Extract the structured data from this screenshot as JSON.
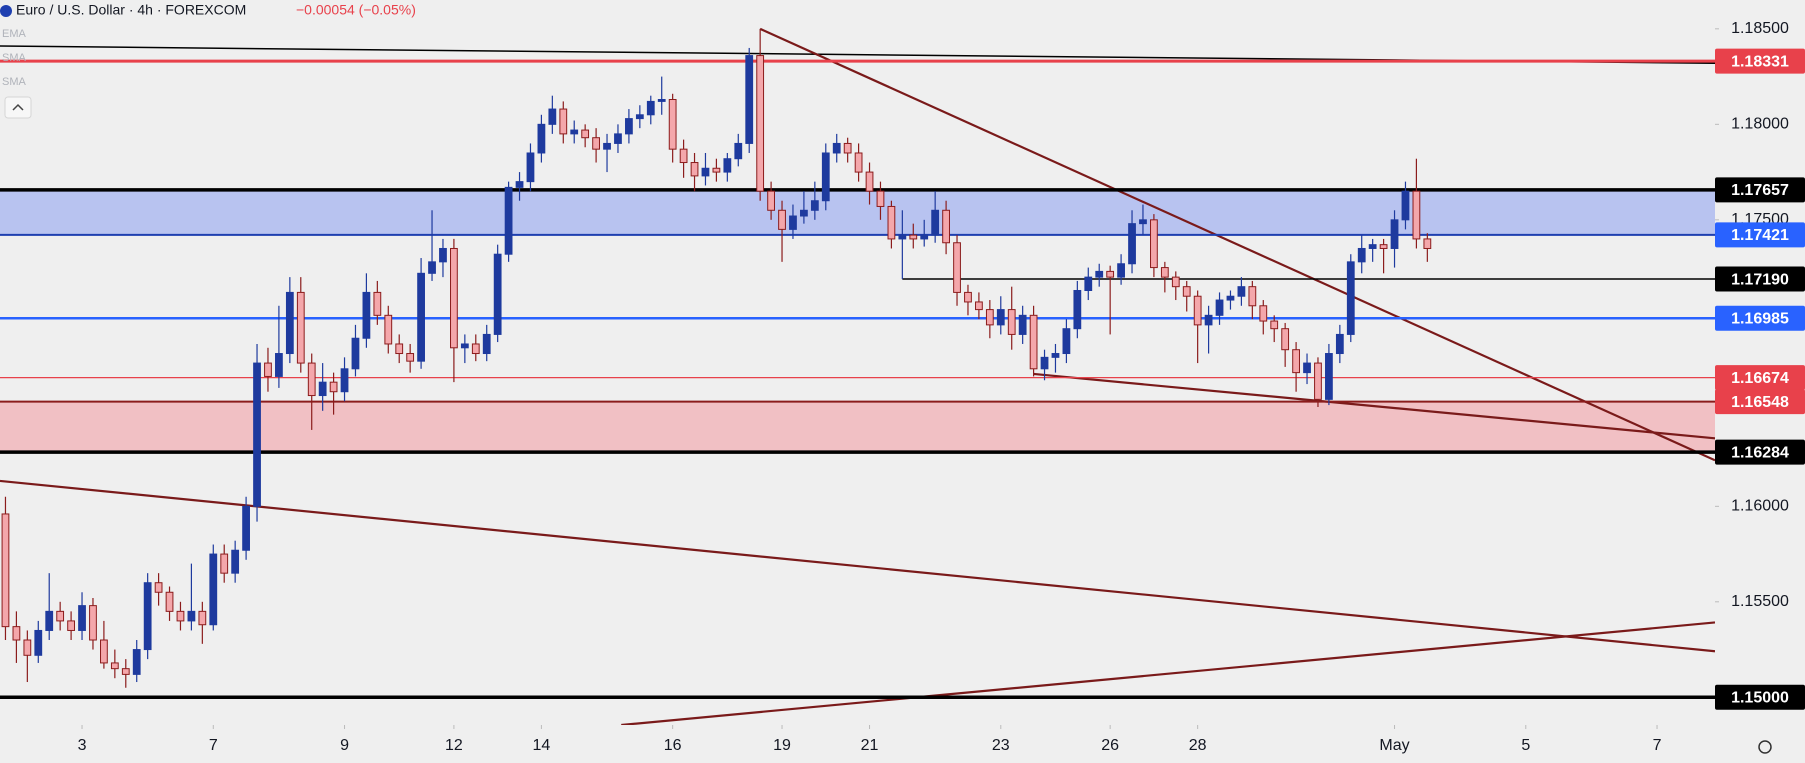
{
  "header": {
    "symbol": "Euro / U.S. Dollar · 4h · FOREXCOM",
    "change": "−0.00054 (−0.05%)",
    "indicators": [
      "EMA",
      "SMA",
      "SMA"
    ]
  },
  "chart_data": {
    "type": "candlestick",
    "up_color": "#1e3a9e",
    "down_color": "#f4a7ab",
    "down_edge": "#8b1c1c",
    "xlim": [
      -0.5,
      156.3
    ],
    "ylim": [
      1.14855,
      1.18651
    ],
    "xticks": [
      {
        "value": 7,
        "label": "3"
      },
      {
        "value": 19,
        "label": "7"
      },
      {
        "value": 31,
        "label": "9"
      },
      {
        "value": 41,
        "label": "12"
      },
      {
        "value": 49,
        "label": "14"
      },
      {
        "value": 61,
        "label": "16"
      },
      {
        "value": 71,
        "label": "19"
      },
      {
        "value": 79,
        "label": "21"
      },
      {
        "value": 91,
        "label": "23"
      },
      {
        "value": 101,
        "label": "26"
      },
      {
        "value": 109,
        "label": "28"
      },
      {
        "value": 127,
        "label": "May"
      },
      {
        "value": 139,
        "label": "5"
      },
      {
        "value": 151,
        "label": "7"
      }
    ],
    "yticks": [
      {
        "value": 1.185,
        "label": "1.18500"
      },
      {
        "value": 1.18,
        "label": "1.18000"
      },
      {
        "value": 1.175,
        "label": "1.17500"
      },
      {
        "value": 1.16,
        "label": "1.16000"
      },
      {
        "value": 1.155,
        "label": "1.15500"
      }
    ],
    "zones": [
      {
        "from": 1.17421,
        "to": 1.17657,
        "color": "#b8c3f0"
      },
      {
        "from": 1.16284,
        "to": 1.16548,
        "color": "#f1c0c4"
      }
    ],
    "levels": [
      {
        "value": 1.18331,
        "label": "1.18331",
        "color": "#e8414b"
      },
      {
        "value": 1.17657,
        "label": "1.17657",
        "color": "#000000"
      },
      {
        "value": 1.17421,
        "label": "1.17421",
        "color": "#1e3fb0",
        "box": "#2962ff"
      },
      {
        "value": 1.1719,
        "label": "1.17190",
        "color": "#000000",
        "start": 82
      },
      {
        "value": 1.16985,
        "label": "1.16985",
        "color": "#2962ff"
      },
      {
        "value": 1.16674,
        "label": "1.16674",
        "color": "#e8414b"
      },
      {
        "value": 1.16548,
        "label": "1.16548",
        "color": "#8b1c1c",
        "box": "#e8414b"
      },
      {
        "value": 1.16284,
        "label": "1.16284",
        "color": "#000000"
      },
      {
        "value": 1.15,
        "label": "1.15000",
        "color": "#000000"
      }
    ],
    "trendlines": [
      {
        "x": [
          -0.5,
          156.3
        ],
        "y": [
          1.1841,
          1.1832
        ],
        "color": "#000000"
      },
      {
        "x": [
          69,
          156.3
        ],
        "y": [
          1.185,
          1.16241
        ],
        "color": "#7a1a1a"
      },
      {
        "x": [
          -0.5,
          156.3
        ],
        "y": [
          1.16133,
          1.15241
        ],
        "color": "#7a1a1a"
      },
      {
        "x": [
          56.3,
          156.3
        ],
        "y": [
          1.14855,
          1.15392
        ],
        "color": "#7a1a1a"
      },
      {
        "x": [
          94,
          156.3
        ],
        "y": [
          1.16693,
          1.16356
        ],
        "color": "#7a1a1a"
      }
    ],
    "candles": [
      [
        1.1596,
        1.1605,
        1.153,
        1.1537
      ],
      [
        1.1537,
        1.1545,
        1.1518,
        1.153
      ],
      [
        1.153,
        1.1535,
        1.1508,
        1.1522
      ],
      [
        1.1522,
        1.154,
        1.1518,
        1.1535
      ],
      [
        1.1535,
        1.1565,
        1.153,
        1.1545
      ],
      [
        1.1545,
        1.155,
        1.1535,
        1.154
      ],
      [
        1.154,
        1.1545,
        1.153,
        1.1535
      ],
      [
        1.1535,
        1.1555,
        1.153,
        1.1548
      ],
      [
        1.1548,
        1.1552,
        1.1525,
        1.153
      ],
      [
        1.153,
        1.154,
        1.1515,
        1.1518
      ],
      [
        1.1518,
        1.1525,
        1.151,
        1.1515
      ],
      [
        1.1515,
        1.152,
        1.1505,
        1.1512
      ],
      [
        1.1512,
        1.153,
        1.1508,
        1.1525
      ],
      [
        1.1525,
        1.1565,
        1.152,
        1.156
      ],
      [
        1.156,
        1.1565,
        1.1548,
        1.1555
      ],
      [
        1.1555,
        1.1558,
        1.154,
        1.1545
      ],
      [
        1.1545,
        1.155,
        1.1535,
        1.154
      ],
      [
        1.154,
        1.157,
        1.1535,
        1.1545
      ],
      [
        1.1545,
        1.155,
        1.1528,
        1.1538
      ],
      [
        1.1538,
        1.158,
        1.1535,
        1.1575
      ],
      [
        1.1575,
        1.158,
        1.156,
        1.1565
      ],
      [
        1.1565,
        1.1582,
        1.156,
        1.1577
      ],
      [
        1.1577,
        1.1605,
        1.1572,
        1.16
      ],
      [
        1.16,
        1.1685,
        1.1592,
        1.1675
      ],
      [
        1.1675,
        1.1683,
        1.166,
        1.1668
      ],
      [
        1.1668,
        1.1705,
        1.1662,
        1.168
      ],
      [
        1.168,
        1.172,
        1.1675,
        1.1712
      ],
      [
        1.1712,
        1.172,
        1.167,
        1.1675
      ],
      [
        1.1675,
        1.168,
        1.164,
        1.1658
      ],
      [
        1.1658,
        1.1675,
        1.165,
        1.1665
      ],
      [
        1.1665,
        1.167,
        1.1648,
        1.166
      ],
      [
        1.166,
        1.1678,
        1.1655,
        1.1672
      ],
      [
        1.1672,
        1.1695,
        1.1668,
        1.1688
      ],
      [
        1.1688,
        1.1722,
        1.1683,
        1.1712
      ],
      [
        1.1712,
        1.1718,
        1.1695,
        1.17
      ],
      [
        1.17,
        1.1705,
        1.168,
        1.1685
      ],
      [
        1.1685,
        1.169,
        1.1675,
        1.168
      ],
      [
        1.168,
        1.1685,
        1.167,
        1.1676
      ],
      [
        1.1676,
        1.173,
        1.1672,
        1.1722
      ],
      [
        1.1722,
        1.1755,
        1.1718,
        1.1728
      ],
      [
        1.1728,
        1.174,
        1.172,
        1.1735
      ],
      [
        1.1735,
        1.174,
        1.1665,
        1.1683
      ],
      [
        1.1683,
        1.169,
        1.1675,
        1.1685
      ],
      [
        1.1685,
        1.169,
        1.1676,
        1.168
      ],
      [
        1.168,
        1.1695,
        1.1676,
        1.169
      ],
      [
        1.169,
        1.1737,
        1.1686,
        1.1732
      ],
      [
        1.1732,
        1.177,
        1.1728,
        1.1767
      ],
      [
        1.1767,
        1.1775,
        1.176,
        1.177
      ],
      [
        1.177,
        1.179,
        1.1765,
        1.1785
      ],
      [
        1.1785,
        1.1805,
        1.178,
        1.18
      ],
      [
        1.18,
        1.1815,
        1.1795,
        1.1808
      ],
      [
        1.1808,
        1.1812,
        1.179,
        1.1795
      ],
      [
        1.1795,
        1.1802,
        1.179,
        1.1797
      ],
      [
        1.1797,
        1.18,
        1.1788,
        1.1793
      ],
      [
        1.1793,
        1.1798,
        1.178,
        1.1787
      ],
      [
        1.1787,
        1.1795,
        1.1775,
        1.179
      ],
      [
        1.179,
        1.18,
        1.1785,
        1.1795
      ],
      [
        1.1795,
        1.1808,
        1.179,
        1.1803
      ],
      [
        1.1803,
        1.181,
        1.1798,
        1.1805
      ],
      [
        1.1805,
        1.1815,
        1.18,
        1.1812
      ],
      [
        1.1812,
        1.1825,
        1.1805,
        1.1813
      ],
      [
        1.1813,
        1.1816,
        1.178,
        1.1787
      ],
      [
        1.1787,
        1.1792,
        1.1772,
        1.178
      ],
      [
        1.178,
        1.1785,
        1.1765,
        1.1773
      ],
      [
        1.1773,
        1.1785,
        1.1768,
        1.1777
      ],
      [
        1.1777,
        1.1782,
        1.177,
        1.1775
      ],
      [
        1.1775,
        1.1785,
        1.177,
        1.1782
      ],
      [
        1.1782,
        1.1795,
        1.1778,
        1.179
      ],
      [
        1.179,
        1.184,
        1.1785,
        1.1836
      ],
      [
        1.1836,
        1.185,
        1.176,
        1.1765
      ],
      [
        1.1765,
        1.177,
        1.175,
        1.1755
      ],
      [
        1.1755,
        1.176,
        1.1728,
        1.1745
      ],
      [
        1.1745,
        1.1758,
        1.174,
        1.1752
      ],
      [
        1.1752,
        1.1765,
        1.1748,
        1.1755
      ],
      [
        1.1755,
        1.177,
        1.175,
        1.176
      ],
      [
        1.176,
        1.179,
        1.1755,
        1.1785
      ],
      [
        1.1785,
        1.1795,
        1.178,
        1.179
      ],
      [
        1.179,
        1.1793,
        1.178,
        1.1785
      ],
      [
        1.1785,
        1.179,
        1.177,
        1.1775
      ],
      [
        1.1775,
        1.178,
        1.1758,
        1.1765
      ],
      [
        1.1765,
        1.177,
        1.175,
        1.1757
      ],
      [
        1.1757,
        1.176,
        1.1735,
        1.174
      ],
      [
        1.174,
        1.1755,
        1.1719,
        1.1742
      ],
      [
        1.1742,
        1.1748,
        1.1735,
        1.174
      ],
      [
        1.174,
        1.175,
        1.1736,
        1.1742
      ],
      [
        1.1742,
        1.1765,
        1.1738,
        1.1755
      ],
      [
        1.1755,
        1.176,
        1.1732,
        1.1738
      ],
      [
        1.1738,
        1.1742,
        1.1705,
        1.1712
      ],
      [
        1.1712,
        1.1716,
        1.17,
        1.1707
      ],
      [
        1.1707,
        1.1712,
        1.1698,
        1.1703
      ],
      [
        1.1703,
        1.1708,
        1.1688,
        1.1695
      ],
      [
        1.1695,
        1.171,
        1.169,
        1.1703
      ],
      [
        1.1703,
        1.1715,
        1.1682,
        1.169
      ],
      [
        1.169,
        1.1705,
        1.1685,
        1.17
      ],
      [
        1.17,
        1.1705,
        1.1668,
        1.1672
      ],
      [
        1.1672,
        1.1682,
        1.1666,
        1.1678
      ],
      [
        1.1678,
        1.1685,
        1.167,
        1.168
      ],
      [
        1.168,
        1.1698,
        1.1675,
        1.1693
      ],
      [
        1.1693,
        1.1718,
        1.1688,
        1.1713
      ],
      [
        1.1713,
        1.1725,
        1.1708,
        1.172
      ],
      [
        1.172,
        1.1727,
        1.1715,
        1.1723
      ],
      [
        1.1723,
        1.1726,
        1.169,
        1.172
      ],
      [
        1.172,
        1.1732,
        1.1716,
        1.1727
      ],
      [
        1.1727,
        1.1755,
        1.1722,
        1.1748
      ],
      [
        1.1748,
        1.1758,
        1.1742,
        1.175
      ],
      [
        1.175,
        1.1753,
        1.172,
        1.1725
      ],
      [
        1.1725,
        1.1728,
        1.1712,
        1.172
      ],
      [
        1.172,
        1.1723,
        1.1708,
        1.1715
      ],
      [
        1.1715,
        1.1718,
        1.1702,
        1.171
      ],
      [
        1.171,
        1.1713,
        1.1675,
        1.1695
      ],
      [
        1.1695,
        1.1705,
        1.168,
        1.17
      ],
      [
        1.17,
        1.1712,
        1.1695,
        1.1708
      ],
      [
        1.1708,
        1.1713,
        1.1703,
        1.171
      ],
      [
        1.171,
        1.172,
        1.1705,
        1.1715
      ],
      [
        1.1715,
        1.1718,
        1.1698,
        1.1705
      ],
      [
        1.1705,
        1.1708,
        1.169,
        1.1697
      ],
      [
        1.1697,
        1.17,
        1.1686,
        1.1693
      ],
      [
        1.1693,
        1.1696,
        1.1673,
        1.1682
      ],
      [
        1.1682,
        1.1686,
        1.166,
        1.167
      ],
      [
        1.167,
        1.168,
        1.1664,
        1.1675
      ],
      [
        1.1675,
        1.1678,
        1.1652,
        1.1656
      ],
      [
        1.1656,
        1.1685,
        1.1653,
        1.168
      ],
      [
        1.168,
        1.1695,
        1.1675,
        1.169
      ],
      [
        1.169,
        1.1732,
        1.1686,
        1.1728
      ],
      [
        1.1728,
        1.1742,
        1.1722,
        1.1735
      ],
      [
        1.1735,
        1.174,
        1.1728,
        1.1737
      ],
      [
        1.1737,
        1.174,
        1.1722,
        1.1735
      ],
      [
        1.1735,
        1.1755,
        1.1725,
        1.175
      ],
      [
        1.175,
        1.177,
        1.1745,
        1.1765
      ],
      [
        1.1765,
        1.1782,
        1.1735,
        1.174
      ],
      [
        1.174,
        1.1743,
        1.1728,
        1.1735
      ]
    ]
  }
}
